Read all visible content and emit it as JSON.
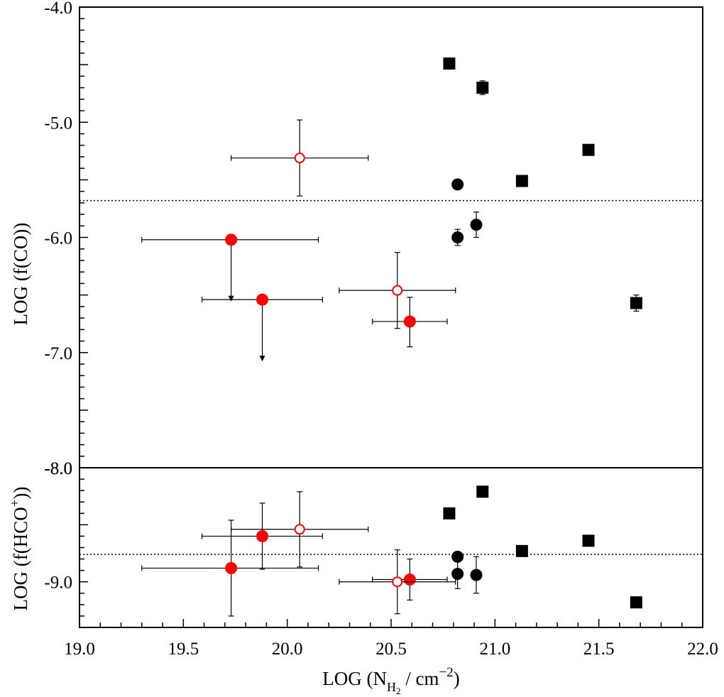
{
  "chart_data": {
    "type": "scatter",
    "xlabel": "LOG (N_H2 / cm^-2)",
    "xlabel_parts": {
      "pre": "LOG (N",
      "sub1": "H",
      "sub2": "2",
      "mid": " / cm",
      "sup": "−2",
      "post": ")"
    },
    "xlim": [
      19.0,
      22.0
    ],
    "x_ticks": [
      "19.0",
      "19.5",
      "20.0",
      "20.5",
      "21.0",
      "21.5",
      "22.0"
    ],
    "panels": [
      {
        "id": "co",
        "ylabel": "LOG (f(CO))",
        "ylim": [
          -8.0,
          -4.0
        ],
        "y_ticks": [
          "-4.0",
          "-5.0",
          "-6.0",
          "-7.0",
          "-8.0"
        ],
        "reference_line": -5.68,
        "series": [
          {
            "name": "red filled circles",
            "marker": "circle",
            "fill": "#ff0000",
            "stroke": "#ff0000",
            "points": [
              {
                "x": 19.73,
                "y": -6.02,
                "xerr": [
                  0.43,
                  0.42
                ],
                "upper_limit_to": -6.55
              },
              {
                "x": 19.88,
                "y": -6.54,
                "xerr": [
                  0.29,
                  0.29
                ],
                "upper_limit_to": -7.07
              },
              {
                "x": 20.59,
                "y": -6.73,
                "xerr": [
                  0.18,
                  0.18
                ],
                "yerr": [
                  0.22,
                  0.21
                ]
              }
            ]
          },
          {
            "name": "red open circles",
            "marker": "circle",
            "fill": "none",
            "stroke": "#ff0000",
            "points": [
              {
                "x": 20.06,
                "y": -5.31,
                "xerr": [
                  0.33,
                  0.33
                ],
                "yerr": [
                  0.33,
                  0.33
                ]
              },
              {
                "x": 20.53,
                "y": -6.46,
                "xerr": [
                  0.28,
                  0.28
                ],
                "yerr": [
                  0.33,
                  0.33
                ]
              }
            ]
          },
          {
            "name": "black filled circles",
            "marker": "circle",
            "fill": "#000000",
            "stroke": "#000000",
            "points": [
              {
                "x": 20.82,
                "y": -5.54
              },
              {
                "x": 20.82,
                "y": -6.0,
                "yerr": [
                  0.07,
                  0.07
                ]
              },
              {
                "x": 20.91,
                "y": -5.89,
                "yerr": [
                  0.11,
                  0.11
                ]
              }
            ]
          },
          {
            "name": "black squares",
            "marker": "square",
            "fill": "#000000",
            "stroke": "#000000",
            "points": [
              {
                "x": 20.78,
                "y": -4.49
              },
              {
                "x": 20.94,
                "y": -4.7,
                "yerr": [
                  0.06,
                  0.06
                ]
              },
              {
                "x": 21.13,
                "y": -5.51
              },
              {
                "x": 21.45,
                "y": -5.24
              },
              {
                "x": 21.68,
                "y": -6.57,
                "yerr": [
                  0.07,
                  0.07
                ]
              }
            ]
          }
        ]
      },
      {
        "id": "hco",
        "ylabel": "LOG (f(HCO⁺))",
        "ylabel_parts": {
          "pre": "LOG (f(HCO",
          "sup": "+",
          "post": "))"
        },
        "ylim": [
          -9.4,
          -8.0
        ],
        "y_ticks": [
          "-8.0",
          "-9.0"
        ],
        "reference_line": -8.76,
        "series": [
          {
            "name": "red filled circles",
            "marker": "circle",
            "fill": "#ff0000",
            "stroke": "#ff0000",
            "points": [
              {
                "x": 19.73,
                "y": -8.88,
                "xerr": [
                  0.43,
                  0.42
                ],
                "yerr": [
                  0.42,
                  0.42
                ]
              },
              {
                "x": 19.88,
                "y": -8.6,
                "xerr": [
                  0.29,
                  0.29
                ],
                "yerr": [
                  0.29,
                  0.29
                ]
              },
              {
                "x": 20.59,
                "y": -8.98,
                "xerr": [
                  0.18,
                  0.18
                ],
                "yerr": [
                  0.18,
                  0.18
                ]
              }
            ]
          },
          {
            "name": "red open circles",
            "marker": "circle",
            "fill": "none",
            "stroke": "#ff0000",
            "points": [
              {
                "x": 20.06,
                "y": -8.54,
                "xerr": [
                  0.33,
                  0.33
                ],
                "yerr": [
                  0.33,
                  0.33
                ]
              },
              {
                "x": 20.53,
                "y": -9.0,
                "xerr": [
                  0.28,
                  0.28
                ],
                "yerr": [
                  0.28,
                  0.28
                ]
              }
            ]
          },
          {
            "name": "black filled circles",
            "marker": "circle",
            "fill": "#000000",
            "stroke": "#000000",
            "points": [
              {
                "x": 20.82,
                "y": -8.78
              },
              {
                "x": 20.82,
                "y": -8.93,
                "yerr": [
                  0.13,
                  0.13
                ]
              },
              {
                "x": 20.91,
                "y": -8.94,
                "yerr": [
                  0.16,
                  0.16
                ]
              }
            ]
          },
          {
            "name": "black squares",
            "marker": "square",
            "fill": "#000000",
            "stroke": "#000000",
            "points": [
              {
                "x": 20.78,
                "y": -8.4
              },
              {
                "x": 20.94,
                "y": -8.21,
                "yerr": [
                  0.02,
                  0.02
                ]
              },
              {
                "x": 21.13,
                "y": -8.73
              },
              {
                "x": 21.45,
                "y": -8.64
              },
              {
                "x": 21.68,
                "y": -9.18
              }
            ]
          }
        ]
      }
    ]
  }
}
